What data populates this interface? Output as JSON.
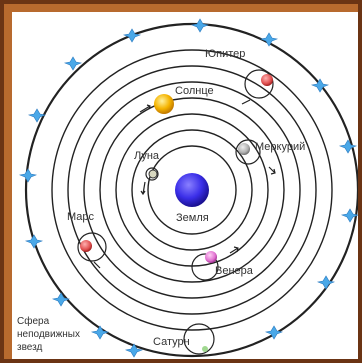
{
  "labels": {
    "earth": "Земля",
    "moon": "Луна",
    "mercury": "Меркурий",
    "venus": "Венера",
    "sun": "Солнце",
    "mars": "Марс",
    "jupiter": "Юпитер",
    "saturn": "Сатурн",
    "sphere_line1": "Сфера",
    "sphere_line2": "неподвижных",
    "sphere_line3": "звезд"
  },
  "colors": {
    "frame": "#b86a2e",
    "earth": "#3a2ee8",
    "sun": "#f5b400",
    "mars": "#e05050",
    "venus": "#e070d0",
    "mercury": "#b0b0b0",
    "jupiter": "#e07070",
    "moon": "#d8d8c0",
    "stars": "#4aa8e8"
  }
}
